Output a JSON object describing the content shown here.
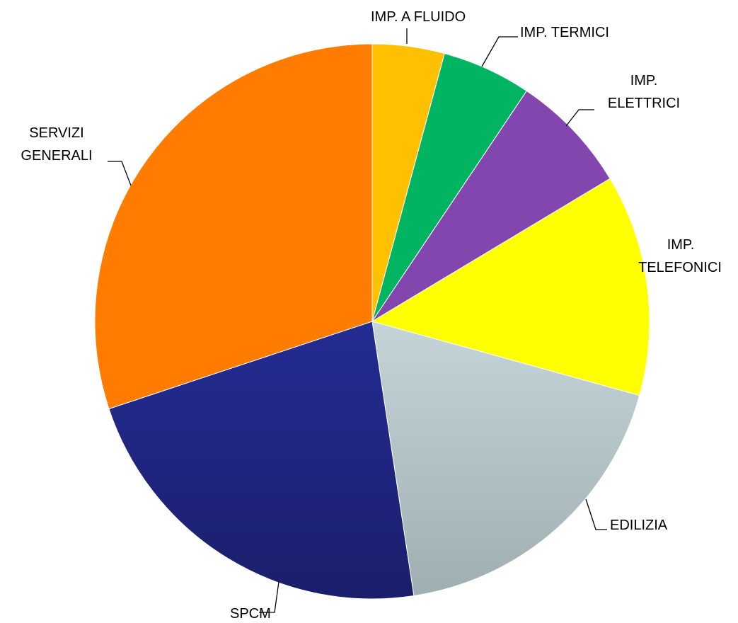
{
  "chart_data": {
    "type": "pie",
    "title": "",
    "start_angle_deg": 0,
    "direction": "clockwise",
    "legend": "none",
    "slices": [
      {
        "label": "IMP. A FLUIDO",
        "value": 4.2,
        "color": "#ffc000"
      },
      {
        "label": "IMP. TERMICI",
        "value": 5.2,
        "color": "#00b462"
      },
      {
        "label": "IMP. ELETTRICI",
        "value": 7.0,
        "color": "#8246ae"
      },
      {
        "label": "IMP. TELEFONICI",
        "value": 12.9,
        "color": "#ffff00"
      },
      {
        "label": "EDILIZIA",
        "value": 18.3,
        "color": "#b7c7cb",
        "color_end": "#9fb0b2"
      },
      {
        "label": "SPCM",
        "value": 22.3,
        "color": "#23298c",
        "color_end": "#1b1f6e"
      },
      {
        "label": "SERVIZI GENERALI",
        "value": 30.1,
        "color": "#ff7c00"
      }
    ]
  },
  "labels": {
    "fluido": "IMP. A FLUIDO",
    "termici": "IMP. TERMICI",
    "elettrici_1": "IMP.",
    "elettrici_2": "ELETTRICI",
    "telefonici_1": "IMP.",
    "telefonici_2": "TELEFONICI",
    "edilizia": "EDILIZIA",
    "spcm": "SPCM",
    "servizi_1": "SERVIZI",
    "servizi_2": "GENERALI"
  }
}
